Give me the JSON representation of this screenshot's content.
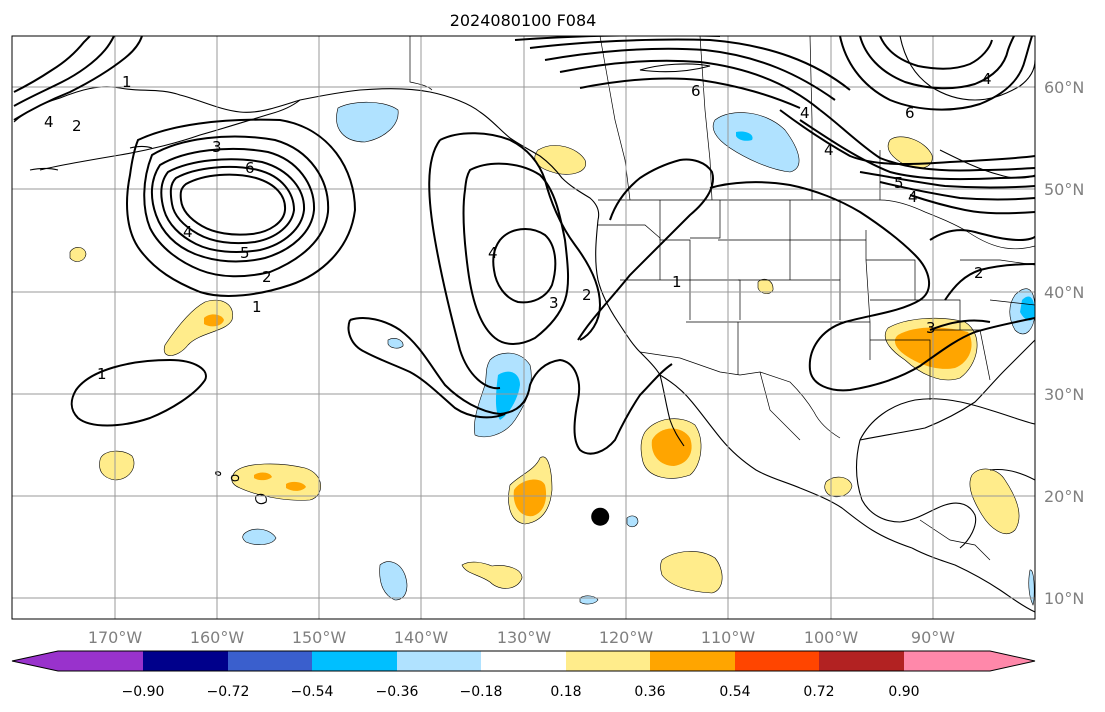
{
  "title": "2024080100 F084",
  "map": {
    "extent": {
      "lon_min": -180,
      "lon_max": -80,
      "lat_min": 8,
      "lat_max": 65
    },
    "gridlines": true,
    "longitude_labels": [
      "170°W",
      "160°W",
      "150°W",
      "140°W",
      "130°W",
      "120°W",
      "110°W",
      "100°W",
      "90°W"
    ],
    "latitude_labels": [
      "10°N",
      "20°N",
      "30°N",
      "40°N",
      "50°N",
      "60°N"
    ],
    "contour_labels": [
      "2",
      "1",
      "4",
      "3",
      "6",
      "4",
      "5",
      "2",
      "1",
      "1",
      "4",
      "3",
      "2",
      "1",
      "6",
      "4",
      "4",
      "5",
      "4",
      "2",
      "4",
      "6",
      "3"
    ],
    "marker": {
      "type": "dot",
      "lon": -122.5,
      "lat": 18,
      "color": "#000000"
    }
  },
  "colorbar": {
    "tick_labels": [
      "−0.90",
      "−0.72",
      "−0.54",
      "−0.36",
      "−0.18",
      "0.18",
      "0.36",
      "0.54",
      "0.72",
      "0.90"
    ],
    "colors": [
      "#9932cc",
      "#00008b",
      "#3a5fcd",
      "#00bfff",
      "#b0e2ff",
      "#ffffff",
      "#ffec8b",
      "#ffa500",
      "#ff4500",
      "#b22222",
      "#ff88aa"
    ],
    "extend": "both"
  },
  "palette": {
    "shade_neg_light": "#b0e2ff",
    "shade_neg_mid": "#00bfff",
    "shade_pos_light": "#ffec8b",
    "shade_pos_mid": "#ffa500",
    "contour": "#000000",
    "grid": "#999999",
    "coast": "#000000",
    "tick_label": "#808080"
  }
}
